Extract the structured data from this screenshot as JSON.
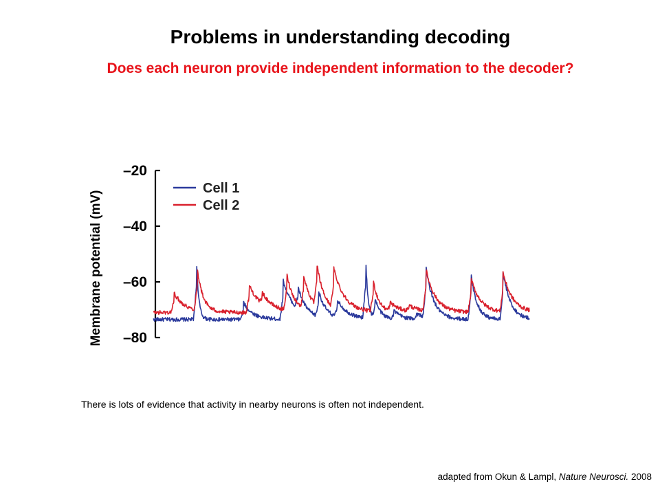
{
  "slide": {
    "title": "Problems in understanding decoding",
    "subtitle": "Does each neuron provide independent information to the decoder?",
    "caption": "There is lots of evidence that activity in nearby neurons is often not independent.",
    "credit_prefix": "adapted from Okun & Lampl, ",
    "credit_journal": "Nature Neurosci.",
    "credit_year": " 2008"
  },
  "colors": {
    "cell1": "#2b3a9c",
    "cell2": "#d9212d",
    "axis": "#000000",
    "subtitle": "#e8141b"
  },
  "chart_data": {
    "type": "line",
    "title": "",
    "xlabel": "",
    "ylabel": "Membrane potential (mV)",
    "ylim": [
      -80,
      -20
    ],
    "yticks": [
      "–20",
      "–40",
      "–60",
      "–80"
    ],
    "ytick_values": [
      -20,
      -40,
      -60,
      -80
    ],
    "xlim": [
      0,
      100
    ],
    "grid": false,
    "legend": {
      "position": "top-left",
      "entries": [
        "Cell 1",
        "Cell 2"
      ]
    },
    "series": [
      {
        "name": "Cell 1",
        "color": "#2b3a9c",
        "baseline": -73.5,
        "events": [
          {
            "t": 11.5,
            "a": 21,
            "tau": 0.6
          },
          {
            "t": 24,
            "a": 6,
            "tau": 2.5
          },
          {
            "t": 34.5,
            "a": 14,
            "tau": 3
          },
          {
            "t": 38.5,
            "a": 8,
            "tau": 2
          },
          {
            "t": 44,
            "a": 9,
            "tau": 2
          },
          {
            "t": 49,
            "a": 6,
            "tau": 3
          },
          {
            "t": 56.5,
            "a": 21,
            "tau": 0.6
          },
          {
            "t": 59,
            "a": 7,
            "tau": 1.5
          },
          {
            "t": 64,
            "a": 3,
            "tau": 2
          },
          {
            "t": 70,
            "a": 2,
            "tau": 3
          },
          {
            "t": 72.5,
            "a": 18,
            "tau": 2
          },
          {
            "t": 84.5,
            "a": 16,
            "tau": 1.6
          },
          {
            "t": 93,
            "a": 17,
            "tau": 2
          }
        ]
      },
      {
        "name": "Cell 2",
        "color": "#d9212d",
        "baseline": -71,
        "events": [
          {
            "t": 5.5,
            "a": 7,
            "tau": 3
          },
          {
            "t": 11.7,
            "a": 15,
            "tau": 1.5
          },
          {
            "t": 25.5,
            "a": 10,
            "tau": 3
          },
          {
            "t": 29,
            "a": 4,
            "tau": 3
          },
          {
            "t": 35.5,
            "a": 13,
            "tau": 2
          },
          {
            "t": 40,
            "a": 12,
            "tau": 2
          },
          {
            "t": 43.5,
            "a": 15,
            "tau": 2
          },
          {
            "t": 48,
            "a": 14,
            "tau": 3
          },
          {
            "t": 58.5,
            "a": 11,
            "tau": 1.5
          },
          {
            "t": 63,
            "a": 3,
            "tau": 3
          },
          {
            "t": 68,
            "a": 2,
            "tau": 3
          },
          {
            "t": 72.5,
            "a": 15,
            "tau": 2.5
          },
          {
            "t": 84.5,
            "a": 12,
            "tau": 2.5
          },
          {
            "t": 93,
            "a": 14,
            "tau": 2.5
          }
        ]
      }
    ]
  }
}
